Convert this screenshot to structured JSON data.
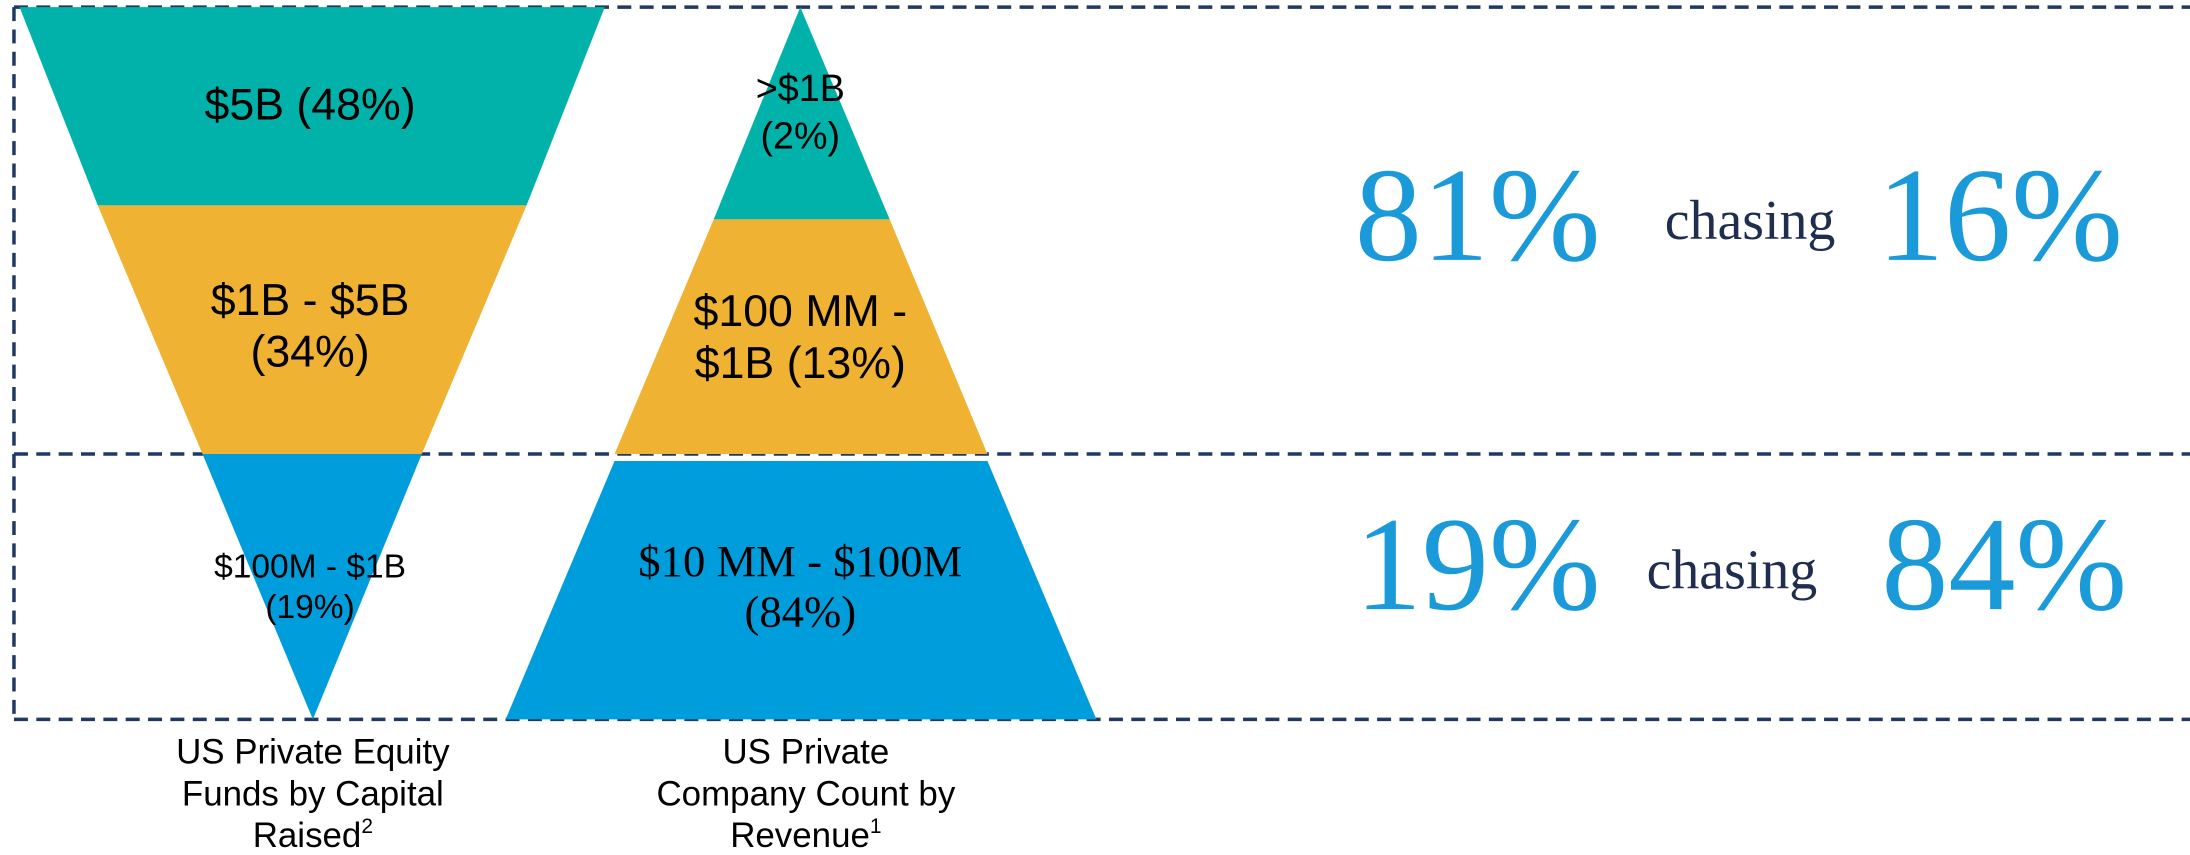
{
  "funnel": {
    "segments": [
      {
        "lines": [
          "$5B (48%)"
        ]
      },
      {
        "lines": [
          "$1B - $5B",
          "(34%)"
        ]
      },
      {
        "lines": [
          "$100M - $1B",
          "(19%)"
        ]
      }
    ],
    "caption": [
      "US Private Equity",
      "Funds by Capital",
      "Raised"
    ],
    "caption_note": "2"
  },
  "pyramid": {
    "segments": [
      {
        "lines": [
          ">$1B",
          "(2%)"
        ]
      },
      {
        "lines": [
          "$100 MM -",
          "$1B (13%)"
        ]
      },
      {
        "lines": [
          "$10 MM - $100M",
          "(84%)"
        ]
      }
    ],
    "caption": [
      "US Private",
      "Company Count by",
      "Revenue"
    ],
    "caption_note": "1"
  },
  "comparisons": [
    {
      "left": "81%",
      "word": "chasing",
      "right": "16%"
    },
    {
      "left": "19%",
      "word": "chasing",
      "right": "84%"
    }
  ]
}
